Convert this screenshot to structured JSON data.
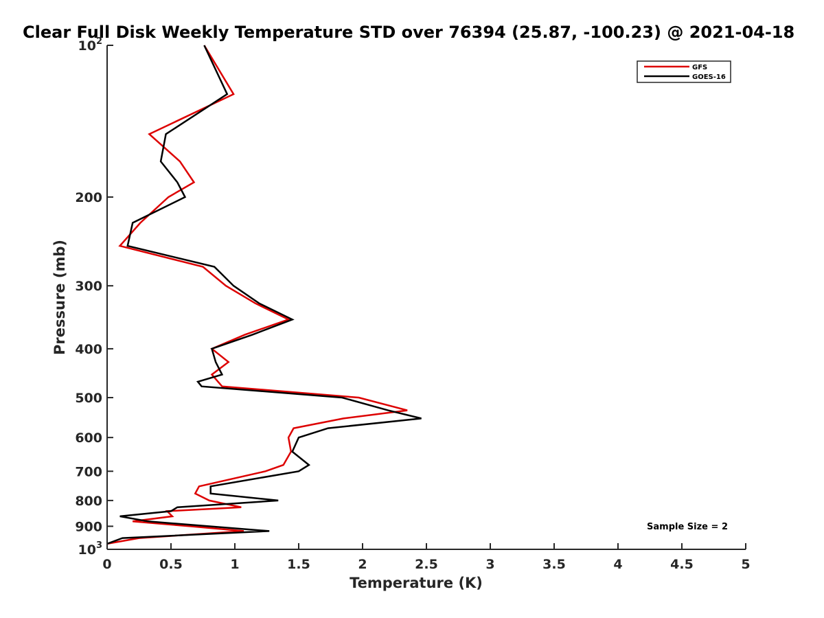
{
  "chart_data": {
    "type": "line",
    "title": "Clear Full Disk Weekly Temperature STD over 76394 (25.87, -100.23) @ 2021-04-18",
    "xlabel": "Temperature (K)",
    "ylabel": "Pressure (mb)",
    "xlim": [
      0,
      5
    ],
    "ylim": [
      100,
      1000
    ],
    "y_scale": "log",
    "y_reversed": true,
    "x_ticks": [
      {
        "value": 0,
        "label": "0"
      },
      {
        "value": 0.5,
        "label": "0.5"
      },
      {
        "value": 1,
        "label": "1"
      },
      {
        "value": 1.5,
        "label": "1.5"
      },
      {
        "value": 2,
        "label": "2"
      },
      {
        "value": 2.5,
        "label": "2.5"
      },
      {
        "value": 3,
        "label": "3"
      },
      {
        "value": 3.5,
        "label": "3.5"
      },
      {
        "value": 4,
        "label": "4"
      },
      {
        "value": 4.5,
        "label": "4.5"
      },
      {
        "value": 5,
        "label": "5"
      }
    ],
    "y_ticks": [
      {
        "value": 100,
        "base": "10",
        "exp": "2"
      },
      {
        "value": 200,
        "label": "200"
      },
      {
        "value": 300,
        "label": "300"
      },
      {
        "value": 400,
        "label": "400"
      },
      {
        "value": 500,
        "label": "500"
      },
      {
        "value": 600,
        "label": "600"
      },
      {
        "value": 700,
        "label": "700"
      },
      {
        "value": 800,
        "label": "800"
      },
      {
        "value": 900,
        "label": "900"
      },
      {
        "value": 1000,
        "base": "10",
        "exp": "3"
      }
    ],
    "grid": false,
    "legend_position": "top-right",
    "series": [
      {
        "name": "GFS",
        "color": "#dd0000",
        "points": [
          {
            "x": 0.76,
            "y": 100
          },
          {
            "x": 0.99,
            "y": 125
          },
          {
            "x": 0.33,
            "y": 150
          },
          {
            "x": 0.57,
            "y": 170
          },
          {
            "x": 0.68,
            "y": 187
          },
          {
            "x": 0.48,
            "y": 200
          },
          {
            "x": 0.26,
            "y": 225
          },
          {
            "x": 0.1,
            "y": 250
          },
          {
            "x": 0.75,
            "y": 275
          },
          {
            "x": 0.93,
            "y": 300
          },
          {
            "x": 1.16,
            "y": 325
          },
          {
            "x": 1.42,
            "y": 350
          },
          {
            "x": 1.08,
            "y": 375
          },
          {
            "x": 0.82,
            "y": 400
          },
          {
            "x": 0.95,
            "y": 425
          },
          {
            "x": 0.82,
            "y": 450
          },
          {
            "x": 0.9,
            "y": 475
          },
          {
            "x": 1.97,
            "y": 500
          },
          {
            "x": 2.35,
            "y": 530
          },
          {
            "x": 1.85,
            "y": 550
          },
          {
            "x": 1.46,
            "y": 575
          },
          {
            "x": 1.42,
            "y": 600
          },
          {
            "x": 1.44,
            "y": 640
          },
          {
            "x": 1.38,
            "y": 680
          },
          {
            "x": 1.24,
            "y": 700
          },
          {
            "x": 0.72,
            "y": 750
          },
          {
            "x": 0.69,
            "y": 775
          },
          {
            "x": 0.8,
            "y": 800
          },
          {
            "x": 1.05,
            "y": 825
          },
          {
            "x": 0.47,
            "y": 840
          },
          {
            "x": 0.51,
            "y": 860
          },
          {
            "x": 0.2,
            "y": 880
          },
          {
            "x": 0.65,
            "y": 900
          },
          {
            "x": 1.07,
            "y": 920
          },
          {
            "x": 0.25,
            "y": 950
          },
          {
            "x": 0.0,
            "y": 975
          }
        ]
      },
      {
        "name": "GOES-16",
        "color": "#000000",
        "points": [
          {
            "x": 0.76,
            "y": 100
          },
          {
            "x": 0.94,
            "y": 125
          },
          {
            "x": 0.46,
            "y": 150
          },
          {
            "x": 0.42,
            "y": 170
          },
          {
            "x": 0.55,
            "y": 187
          },
          {
            "x": 0.61,
            "y": 200
          },
          {
            "x": 0.2,
            "y": 225
          },
          {
            "x": 0.16,
            "y": 250
          },
          {
            "x": 0.84,
            "y": 275
          },
          {
            "x": 0.99,
            "y": 300
          },
          {
            "x": 1.19,
            "y": 325
          },
          {
            "x": 1.45,
            "y": 350
          },
          {
            "x": 1.14,
            "y": 375
          },
          {
            "x": 0.82,
            "y": 400
          },
          {
            "x": 0.85,
            "y": 425
          },
          {
            "x": 0.9,
            "y": 450
          },
          {
            "x": 0.71,
            "y": 465
          },
          {
            "x": 0.74,
            "y": 475
          },
          {
            "x": 1.84,
            "y": 500
          },
          {
            "x": 2.2,
            "y": 530
          },
          {
            "x": 2.46,
            "y": 550
          },
          {
            "x": 1.73,
            "y": 575
          },
          {
            "x": 1.5,
            "y": 600
          },
          {
            "x": 1.45,
            "y": 640
          },
          {
            "x": 1.58,
            "y": 680
          },
          {
            "x": 1.5,
            "y": 700
          },
          {
            "x": 0.81,
            "y": 750
          },
          {
            "x": 0.81,
            "y": 775
          },
          {
            "x": 1.34,
            "y": 800
          },
          {
            "x": 0.55,
            "y": 825
          },
          {
            "x": 0.5,
            "y": 840
          },
          {
            "x": 0.1,
            "y": 860
          },
          {
            "x": 0.32,
            "y": 880
          },
          {
            "x": 1.27,
            "y": 920
          },
          {
            "x": 0.12,
            "y": 950
          },
          {
            "x": 0.0,
            "y": 975
          }
        ]
      }
    ],
    "annotation": "Sample Size = 2"
  }
}
